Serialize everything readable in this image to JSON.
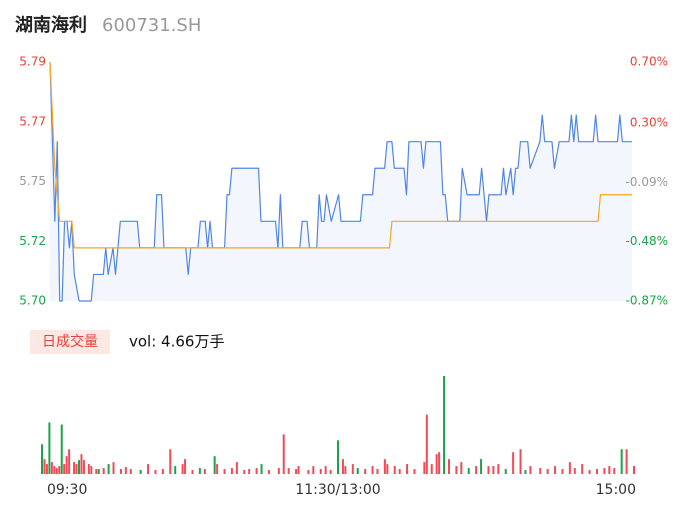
{
  "header": {
    "name": "湖南海利",
    "code": "600731.SH"
  },
  "chart_data": [
    {
      "type": "line",
      "xlim": [
        0,
        240
      ],
      "ylim": [
        5.7,
        5.79
      ],
      "yticks": [
        {
          "value": 5.7,
          "label": "5.70"
        },
        {
          "value": 5.7225,
          "label": "5.72"
        },
        {
          "value": 5.745,
          "label": "5.75"
        },
        {
          "value": 5.7675,
          "label": "5.77"
        },
        {
          "value": 5.79,
          "label": "5.79"
        }
      ],
      "ytick_colors": [
        "#1aa34a",
        "#1aa34a",
        "#999999",
        "#e8413a",
        "#e8413a"
      ],
      "y2lim": [
        -0.87,
        0.7
      ],
      "y2ticks": [
        {
          "value": -0.87,
          "label": "-0.87%"
        },
        {
          "value": -0.48,
          "label": "-0.48%"
        },
        {
          "value": -0.09,
          "label": "-0.09%"
        },
        {
          "value": 0.3,
          "label": "0.30%"
        },
        {
          "value": 0.7,
          "label": "0.70%"
        }
      ],
      "area_color": "#f3f6fc",
      "series": [
        {
          "color": "#4f86e8",
          "x": [
            0,
            1,
            2,
            3,
            4,
            5,
            6,
            7,
            8,
            9,
            10,
            12,
            17,
            18,
            22,
            23,
            24,
            26,
            27,
            29,
            36,
            37,
            43,
            44,
            46,
            47,
            56,
            57,
            58,
            61,
            62,
            64,
            65,
            66,
            67,
            72,
            73,
            74,
            75,
            86,
            87,
            93,
            94,
            95,
            96,
            103,
            104,
            106,
            107,
            110,
            111,
            112,
            113,
            114,
            116,
            119,
            120,
            128,
            129,
            133,
            134,
            138,
            139,
            141,
            142,
            146,
            147,
            148,
            153,
            154,
            155,
            161,
            162,
            163,
            164,
            169,
            170,
            172,
            177,
            178,
            180,
            181,
            186,
            187,
            188,
            190,
            191,
            192,
            193,
            194,
            197,
            198,
            202,
            203,
            204,
            207,
            208,
            210,
            214,
            215,
            216,
            217,
            218,
            224,
            225,
            226,
            234,
            235,
            236,
            240
          ],
          "values": [
            5.79,
            5.76,
            5.73,
            5.76,
            5.7,
            5.7,
            5.73,
            5.73,
            5.72,
            5.73,
            5.71,
            5.7,
            5.7,
            5.71,
            5.71,
            5.72,
            5.71,
            5.72,
            5.71,
            5.73,
            5.73,
            5.72,
            5.72,
            5.74,
            5.74,
            5.72,
            5.72,
            5.71,
            5.72,
            5.72,
            5.73,
            5.73,
            5.72,
            5.73,
            5.72,
            5.72,
            5.74,
            5.74,
            5.75,
            5.75,
            5.73,
            5.73,
            5.72,
            5.74,
            5.72,
            5.72,
            5.73,
            5.73,
            5.72,
            5.72,
            5.74,
            5.73,
            5.73,
            5.74,
            5.73,
            5.74,
            5.73,
            5.73,
            5.74,
            5.74,
            5.75,
            5.75,
            5.76,
            5.76,
            5.75,
            5.75,
            5.74,
            5.76,
            5.76,
            5.75,
            5.76,
            5.76,
            5.74,
            5.74,
            5.73,
            5.73,
            5.75,
            5.74,
            5.74,
            5.75,
            5.73,
            5.74,
            5.74,
            5.75,
            5.74,
            5.75,
            5.74,
            5.75,
            5.75,
            5.76,
            5.76,
            5.75,
            5.76,
            5.77,
            5.76,
            5.76,
            5.75,
            5.76,
            5.76,
            5.77,
            5.76,
            5.77,
            5.76,
            5.76,
            5.77,
            5.76,
            5.76,
            5.77,
            5.76,
            5.76
          ]
        },
        {
          "color": "#f5a623",
          "x": [
            0,
            2,
            4,
            9,
            10,
            140,
            141,
            226,
            227,
            240
          ],
          "values": [
            5.79,
            5.75,
            5.73,
            5.73,
            5.72,
            5.72,
            5.73,
            5.73,
            5.74,
            5.74
          ]
        }
      ]
    },
    {
      "type": "bar",
      "title": "日成交量",
      "subtitle": "vol: 4.66万手",
      "xlim": [
        0,
        240
      ],
      "ylim": [
        0,
        100
      ],
      "xticks": [
        {
          "value": 0,
          "label": "09:30"
        },
        {
          "value": 120,
          "label": "11:30/13:00"
        },
        {
          "value": 240,
          "label": "15:00"
        }
      ],
      "x": [
        0,
        1,
        2,
        3,
        4,
        5,
        6,
        7,
        8,
        9,
        10,
        11,
        13,
        14,
        15,
        16,
        17,
        19,
        20,
        22,
        23,
        25,
        27,
        29,
        32,
        34,
        36,
        40,
        43,
        46,
        49,
        52,
        54,
        57,
        58,
        61,
        64,
        66,
        70,
        71,
        74,
        77,
        79,
        82,
        84,
        87,
        89,
        92,
        96,
        98,
        100,
        103,
        104,
        108,
        110,
        113,
        115,
        117,
        120,
        122,
        123,
        126,
        128,
        131,
        134,
        136,
        139,
        140,
        143,
        145,
        148,
        151,
        155,
        156,
        158,
        160,
        161,
        163,
        165,
        168,
        170,
        173,
        176,
        178,
        181,
        183,
        185,
        188,
        191,
        194,
        196,
        198,
        202,
        205,
        208,
        211,
        214,
        216,
        219,
        222,
        225,
        228,
        230,
        232,
        235,
        237,
        240
      ],
      "values": [
        30,
        15,
        10,
        52,
        12,
        8,
        6,
        8,
        50,
        10,
        18,
        25,
        12,
        10,
        14,
        20,
        14,
        10,
        8,
        5,
        5,
        6,
        10,
        12,
        5,
        7,
        5,
        4,
        10,
        4,
        5,
        25,
        8,
        10,
        15,
        4,
        6,
        5,
        18,
        10,
        5,
        6,
        12,
        4,
        5,
        6,
        10,
        4,
        6,
        40,
        6,
        5,
        8,
        4,
        8,
        5,
        8,
        4,
        34,
        15,
        8,
        10,
        6,
        5,
        8,
        5,
        15,
        10,
        8,
        5,
        10,
        5,
        12,
        60,
        10,
        20,
        22,
        99,
        15,
        8,
        12,
        6,
        8,
        15,
        8,
        8,
        10,
        5,
        22,
        25,
        4,
        8,
        6,
        5,
        8,
        5,
        12,
        6,
        10,
        4,
        5,
        6,
        8,
        6,
        25,
        25,
        8
      ],
      "colors": [
        "#1aa34a",
        "#f24957",
        "#f24957",
        "#1aa34a",
        "#f24957",
        "#f24957",
        "#f24957",
        "#f24957",
        "#1aa34a",
        "#f24957",
        "#f24957",
        "#f24957",
        "#f24957",
        "#f24957",
        "#1aa34a",
        "#f24957",
        "#f24957",
        "#f24957",
        "#f24957",
        "#f24957",
        "#1aa34a",
        "#f24957",
        "#1aa34a",
        "#f24957",
        "#f24957",
        "#f24957",
        "#f24957",
        "#1aa34a",
        "#f24957",
        "#f24957",
        "#f24957",
        "#f24957",
        "#1aa34a",
        "#f24957",
        "#f24957",
        "#f24957",
        "#1aa34a",
        "#f24957",
        "#1aa34a",
        "#f24957",
        "#f24957",
        "#f24957",
        "#f24957",
        "#f24957",
        "#f24957",
        "#f24957",
        "#1aa34a",
        "#f24957",
        "#f24957",
        "#f24957",
        "#f24957",
        "#f24957",
        "#f24957",
        "#f24957",
        "#f24957",
        "#f24957",
        "#f24957",
        "#f24957",
        "#1aa34a",
        "#f24957",
        "#f24957",
        "#f24957",
        "#1aa34a",
        "#f24957",
        "#f24957",
        "#f24957",
        "#f24957",
        "#f24957",
        "#f24957",
        "#f24957",
        "#f24957",
        "#f24957",
        "#f24957",
        "#f24957",
        "#f24957",
        "#f24957",
        "#f24957",
        "#1aa34a",
        "#f24957",
        "#f24957",
        "#f24957",
        "#1aa34a",
        "#f24957",
        "#1aa34a",
        "#f24957",
        "#f24957",
        "#f24957",
        "#1aa34a",
        "#f24957",
        "#f24957",
        "#1aa34a",
        "#f24957",
        "#f24957",
        "#f24957",
        "#f24957",
        "#f24957",
        "#f24957",
        "#f24957",
        "#f24957",
        "#f24957",
        "#f24957",
        "#f24957",
        "#f24957",
        "#f24957",
        "#1aa34a",
        "#f24957",
        "#f24957"
      ]
    }
  ]
}
